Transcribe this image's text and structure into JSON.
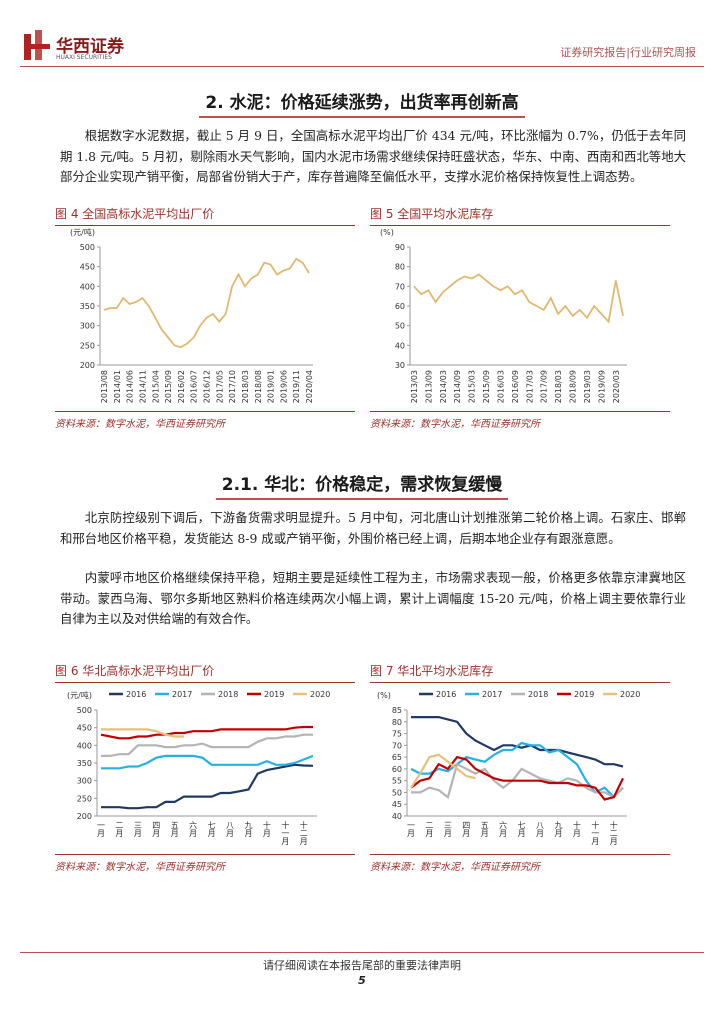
{
  "header": {
    "company": "华西证券",
    "company_en": "HUAXI SECURITIES",
    "report_type": "证券研究报告|行业研究周报"
  },
  "sections": [
    {
      "title": "2. 水泥：价格延续涨势，出货率再创新高",
      "paragraphs": [
        "根据数字水泥数据，截止 5 月 9 日，全国高标水泥平均出厂价 434 元/吨，环比涨幅为 0.7%，仍低于去年同期 1.8 元/吨。5 月初，剔除雨水天气影响，国内水泥市场需求继续保持旺盛状态，华东、中南、西南和西北等地大部分企业实现产销平衡，局部省份销大于产，库存普遍降至偏低水平，支撑水泥价格保持恢复性上调态势。"
      ]
    },
    {
      "title": "2.1. 华北：价格稳定，需求恢复缓慢",
      "paragraphs": [
        "北京防控级别下调后，下游备货需求明显提升。5 月中旬，河北唐山计划推涨第二轮价格上调。石家庄、邯郸和邢台地区价格平稳，发货能达 8-9 成或产销平衡，外围价格已经上调，后期本地企业存有跟涨意愿。",
        "内蒙呼市地区价格继续保持平稳，短期主要是延续性工程为主，市场需求表现一般，价格更多依靠京津冀地区带动。蒙西乌海、鄂尔多斯地区熟料价格连续两次小幅上调，累计上调幅度 15-20 元/吨，价格上调主要依靠行业自律为主以及对供给端的有效合作。"
      ]
    }
  ],
  "figures": [
    {
      "title": "图 4  全国高标水泥平均出厂价",
      "source": "资料来源：数字水泥，华西证券研究所"
    },
    {
      "title": "图 5  全国平均水泥库存",
      "source": "资料来源：数字水泥，华西证券研究所"
    },
    {
      "title": "图 6  华北高标水泥平均出厂价",
      "source": "资料来源：数字水泥，华西证券研究所"
    },
    {
      "title": "图 7  华北平均水泥库存",
      "source": "资料来源：数字水泥，华西证券研究所"
    }
  ],
  "chart_data": [
    {
      "type": "line",
      "y_label": "(元/吨)",
      "color": "#e0b870",
      "categories": [
        "2013/08",
        null,
        "2014/01",
        null,
        "2014/06",
        null,
        "2014/11",
        null,
        "2015/04",
        null,
        "2015/09",
        null,
        "2016/02",
        null,
        "2016/07",
        null,
        "2016/12",
        null,
        "2017/05",
        null,
        "2017/10",
        null,
        "2018/03",
        null,
        "2018/08",
        null,
        "2019/01",
        null,
        "2019/06",
        null,
        "2019/11",
        null,
        "2020/04"
      ],
      "values": [
        340,
        345,
        345,
        370,
        355,
        360,
        370,
        350,
        320,
        290,
        270,
        250,
        245,
        255,
        270,
        300,
        320,
        330,
        310,
        330,
        400,
        430,
        400,
        420,
        430,
        460,
        455,
        430,
        440,
        445,
        470,
        460,
        434
      ],
      "ylim": [
        200,
        500
      ],
      "yticks": [
        200,
        250,
        300,
        350,
        400,
        450,
        500
      ],
      "grid": false
    },
    {
      "type": "line",
      "y_label": "(%)",
      "color": "#e0b870",
      "categories": [
        "2013/03",
        null,
        "2013/09",
        null,
        "2014/03",
        null,
        "2014/09",
        null,
        "2015/03",
        null,
        "2015/09",
        null,
        "2016/03",
        null,
        "2016/09",
        null,
        "2017/03",
        null,
        "2017/09",
        null,
        "2018/03",
        null,
        "2018/09",
        null,
        "2019/03",
        null,
        "2019/09",
        null,
        "2020/03",
        null
      ],
      "values": [
        70,
        66,
        68,
        62,
        67,
        70,
        73,
        75,
        74,
        76,
        73,
        70,
        68,
        70,
        66,
        68,
        62,
        60,
        58,
        64,
        56,
        60,
        55,
        58,
        54,
        60,
        56,
        52,
        73,
        55
      ],
      "ylim": [
        30,
        90
      ],
      "yticks": [
        30,
        40,
        50,
        60,
        70,
        80,
        90
      ],
      "grid": false
    },
    {
      "type": "line",
      "y_label": "(元/吨)",
      "legend": "top",
      "categories": [
        "一月",
        null,
        "二月",
        null,
        "三月",
        null,
        "四月",
        null,
        "五月",
        null,
        "六月",
        null,
        "七月",
        null,
        "八月",
        null,
        "九月",
        null,
        "十月",
        null,
        "十一月",
        null,
        "十二月",
        null
      ],
      "series": [
        {
          "name": "2016",
          "color": "#1f3864",
          "values": [
            225,
            225,
            225,
            222,
            222,
            225,
            225,
            240,
            240,
            255,
            255,
            255,
            255,
            265,
            265,
            270,
            275,
            320,
            330,
            335,
            340,
            345,
            343,
            342
          ]
        },
        {
          "name": "2017",
          "color": "#25b0e6",
          "values": [
            335,
            335,
            335,
            340,
            340,
            350,
            365,
            370,
            370,
            370,
            370,
            365,
            345,
            345,
            345,
            345,
            345,
            345,
            355,
            345,
            345,
            350,
            360,
            370
          ]
        },
        {
          "name": "2018",
          "color": "#b4b4b4",
          "values": [
            370,
            370,
            375,
            375,
            400,
            400,
            400,
            395,
            395,
            400,
            400,
            405,
            395,
            395,
            395,
            395,
            395,
            410,
            420,
            420,
            425,
            425,
            430,
            430
          ]
        },
        {
          "name": "2019",
          "color": "#c00000",
          "values": [
            430,
            425,
            420,
            420,
            425,
            425,
            430,
            430,
            435,
            435,
            440,
            440,
            440,
            445,
            445,
            445,
            445,
            445,
            445,
            445,
            445,
            450,
            452,
            452
          ]
        },
        {
          "name": "2020",
          "color": "#e8c07a",
          "values": [
            445,
            445,
            445,
            445,
            445,
            445,
            440,
            430,
            425,
            425,
            null,
            null,
            null,
            null,
            null,
            null,
            null,
            null,
            null,
            null,
            null,
            null,
            null,
            null
          ]
        }
      ],
      "ylim": [
        200,
        500
      ],
      "yticks": [
        200,
        250,
        300,
        350,
        400,
        450,
        500
      ],
      "grid": false
    },
    {
      "type": "line",
      "y_label": "(%)",
      "legend": "top",
      "categories": [
        "一月",
        null,
        "二月",
        null,
        "三月",
        null,
        "四月",
        null,
        "五月",
        null,
        "六月",
        null,
        "七月",
        null,
        "八月",
        null,
        "九月",
        null,
        "十月",
        null,
        "十一月",
        null,
        "十二月",
        null
      ],
      "series": [
        {
          "name": "2016",
          "color": "#1f3864",
          "values": [
            82,
            82,
            82,
            82,
            81,
            80,
            75,
            72,
            70,
            68,
            70,
            70,
            69,
            70,
            68,
            68,
            68,
            67,
            66,
            65,
            64,
            62,
            62,
            61
          ]
        },
        {
          "name": "2017",
          "color": "#25b0e6",
          "values": [
            60,
            58,
            58,
            60,
            59,
            62,
            65,
            64,
            63,
            66,
            68,
            68,
            71,
            70,
            70,
            67,
            68,
            65,
            62,
            55,
            50,
            52,
            48,
            52
          ]
        },
        {
          "name": "2018",
          "color": "#b4b4b4",
          "values": [
            50,
            50,
            52,
            51,
            48,
            62,
            60,
            58,
            60,
            55,
            52,
            55,
            60,
            58,
            56,
            55,
            54,
            56,
            55,
            52,
            50,
            50,
            48,
            52
          ]
        },
        {
          "name": "2019",
          "color": "#c00000",
          "values": [
            52,
            55,
            56,
            62,
            60,
            65,
            64,
            60,
            58,
            56,
            55,
            55,
            55,
            55,
            55,
            54,
            54,
            54,
            53,
            53,
            52,
            47,
            48,
            56
          ]
        },
        {
          "name": "2020",
          "color": "#e8c07a",
          "values": [
            52,
            58,
            65,
            66,
            63,
            60,
            57,
            56,
            null,
            null,
            null,
            null,
            null,
            null,
            null,
            null,
            null,
            null,
            null,
            null,
            null,
            null,
            null,
            null
          ]
        }
      ],
      "ylim": [
        40,
        85
      ],
      "yticks": [
        40,
        45,
        50,
        55,
        60,
        65,
        70,
        75,
        80,
        85
      ],
      "grid": false
    }
  ],
  "footer": {
    "notice": "请仔细阅读在本报告尾部的重要法律声明",
    "page": 5
  }
}
